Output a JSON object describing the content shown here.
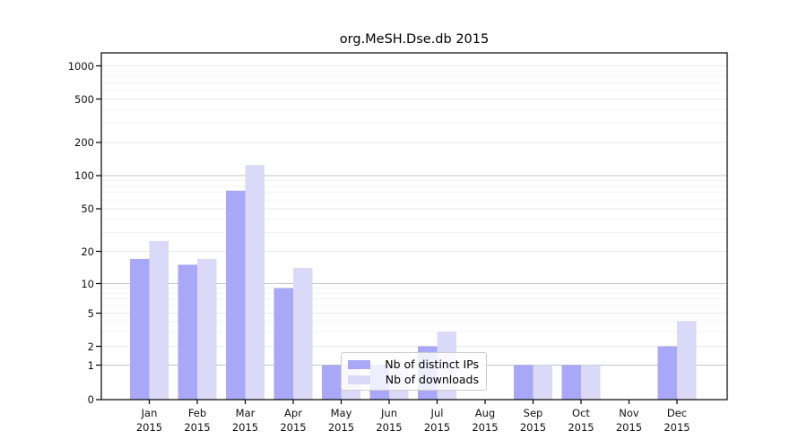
{
  "title": "org.MeSH.Dse.db 2015",
  "colors": {
    "distinct_ips_bar": "#a8a8f6",
    "downloads_bar": "#dadaf8",
    "major_gridline": "#c4c4c4",
    "labeled_gridline": "#e9e9e9",
    "minor_gridline": "#f3f3f3",
    "axis_frame": "#000000",
    "legend_border": "#cccccc"
  },
  "legend": {
    "entries": [
      {
        "label": "Nb of distinct IPs",
        "color_key": "distinct_ips_bar"
      },
      {
        "label": "Nb of downloads",
        "color_key": "downloads_bar"
      }
    ]
  },
  "chart_data": {
    "type": "bar",
    "title": "org.MeSH.Dse.db 2015",
    "categories": [
      "Jan",
      "Feb",
      "Mar",
      "Apr",
      "May",
      "Jun",
      "Jul",
      "Aug",
      "Sep",
      "Oct",
      "Nov",
      "Dec"
    ],
    "category_year_label": "2015",
    "series": [
      {
        "name": "Nb of distinct IPs",
        "values": [
          17,
          15,
          73,
          9,
          1,
          1,
          2,
          0,
          1,
          1,
          0,
          2
        ]
      },
      {
        "name": "Nb of downloads",
        "values": [
          25,
          17,
          125,
          14,
          1,
          1,
          3,
          0,
          1,
          1,
          0,
          4
        ]
      }
    ],
    "ylabel": "",
    "xlabel": "",
    "y_ticks": [
      0,
      1,
      2,
      5,
      10,
      20,
      50,
      100,
      200,
      500,
      1000
    ],
    "y_scale": "log-like custom ticks (0,1,2,5,10,20,50,100,200,500,1000)",
    "grid": "horizontal, log minor gridlines",
    "legend_position": "lower center inside plot"
  }
}
